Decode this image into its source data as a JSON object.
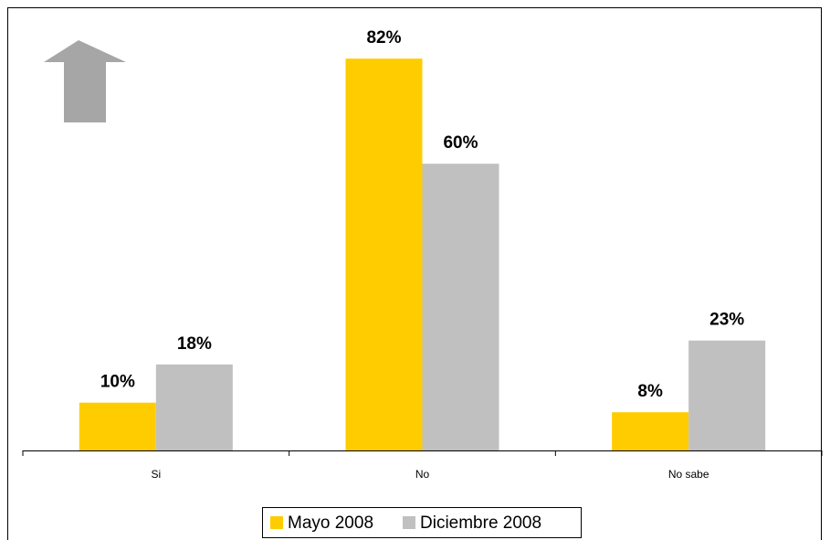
{
  "chart_data": {
    "type": "bar",
    "categories": [
      "Si",
      "No",
      "No sabe"
    ],
    "series": [
      {
        "name": "Mayo 2008",
        "color": "#ffcc00",
        "values": [
          10,
          82,
          8
        ],
        "value_labels": [
          "10%",
          "82%",
          "8%"
        ]
      },
      {
        "name": "Diciembre 2008",
        "color": "#c0c0c0",
        "values": [
          18,
          60,
          23
        ],
        "value_labels": [
          "18%",
          "60%",
          "23%"
        ]
      }
    ]
  }
}
